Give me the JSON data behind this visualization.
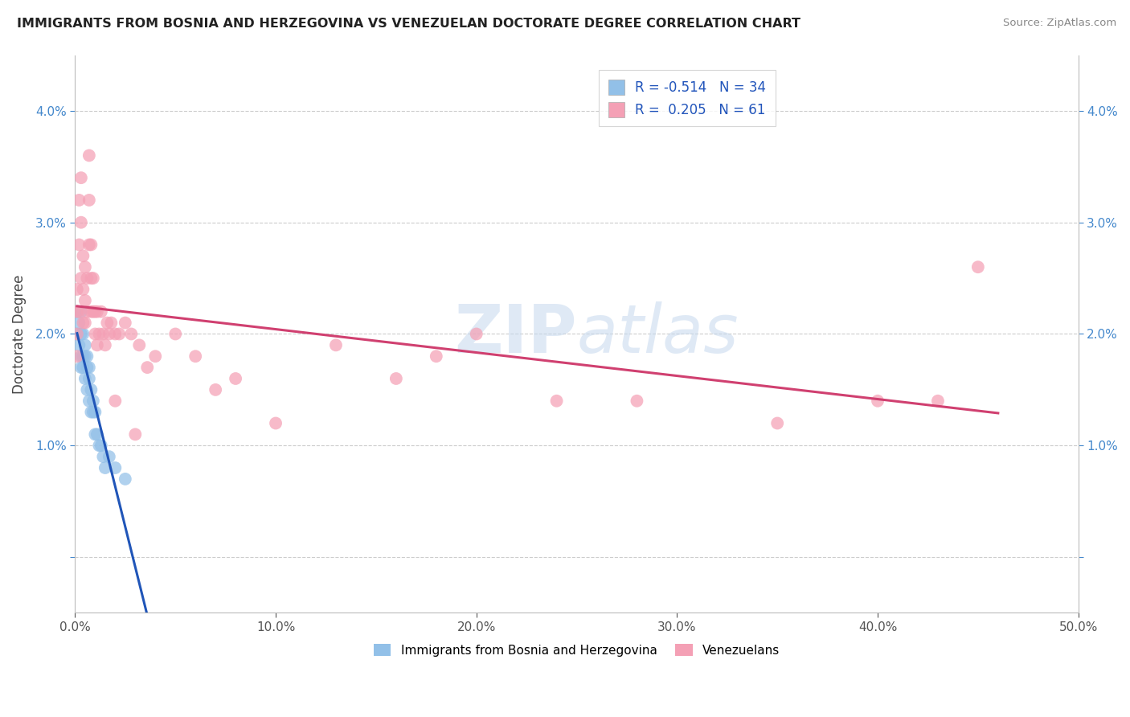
{
  "title": "IMMIGRANTS FROM BOSNIA AND HERZEGOVINA VS VENEZUELAN DOCTORATE DEGREE CORRELATION CHART",
  "source": "Source: ZipAtlas.com",
  "ylabel": "Doctorate Degree",
  "y_ticks": [
    0.0,
    0.01,
    0.02,
    0.03,
    0.04
  ],
  "y_tick_labels": [
    "",
    "1.0%",
    "2.0%",
    "3.0%",
    "4.0%"
  ],
  "x_ticks": [
    0.0,
    0.1,
    0.2,
    0.3,
    0.4,
    0.5
  ],
  "x_tick_labels": [
    "0.0%",
    "10.0%",
    "20.0%",
    "30.0%",
    "40.0%",
    "50.0%"
  ],
  "x_lim": [
    0.0,
    0.5
  ],
  "y_lim": [
    -0.005,
    0.045
  ],
  "legend1_r": "-0.514",
  "legend1_n": "34",
  "legend2_r": "0.205",
  "legend2_n": "61",
  "legend1_label": "Immigrants from Bosnia and Herzegovina",
  "legend2_label": "Venezuelans",
  "color_blue": "#92C0E8",
  "color_pink": "#F4A0B5",
  "line_blue": "#2055B8",
  "line_pink": "#D04070",
  "watermark_color": "#C5D8EE",
  "bosnia_x": [
    0.001,
    0.001,
    0.002,
    0.002,
    0.003,
    0.003,
    0.003,
    0.003,
    0.004,
    0.004,
    0.004,
    0.005,
    0.005,
    0.005,
    0.006,
    0.006,
    0.006,
    0.007,
    0.007,
    0.007,
    0.008,
    0.008,
    0.009,
    0.009,
    0.01,
    0.01,
    0.011,
    0.012,
    0.013,
    0.014,
    0.015,
    0.017,
    0.02,
    0.025
  ],
  "bosnia_y": [
    0.022,
    0.02,
    0.021,
    0.019,
    0.022,
    0.02,
    0.018,
    0.017,
    0.02,
    0.018,
    0.017,
    0.019,
    0.018,
    0.016,
    0.018,
    0.017,
    0.015,
    0.017,
    0.016,
    0.014,
    0.015,
    0.013,
    0.014,
    0.013,
    0.013,
    0.011,
    0.011,
    0.01,
    0.01,
    0.009,
    0.008,
    0.009,
    0.008,
    0.007
  ],
  "venezuela_x": [
    0.001,
    0.001,
    0.001,
    0.001,
    0.002,
    0.002,
    0.002,
    0.003,
    0.003,
    0.003,
    0.004,
    0.004,
    0.004,
    0.005,
    0.005,
    0.005,
    0.006,
    0.006,
    0.007,
    0.007,
    0.007,
    0.008,
    0.008,
    0.008,
    0.009,
    0.009,
    0.01,
    0.01,
    0.011,
    0.011,
    0.012,
    0.013,
    0.014,
    0.015,
    0.016,
    0.017,
    0.018,
    0.02,
    0.022,
    0.025,
    0.028,
    0.032,
    0.036,
    0.04,
    0.05,
    0.06,
    0.08,
    0.1,
    0.13,
    0.16,
    0.18,
    0.2,
    0.24,
    0.28,
    0.35,
    0.4,
    0.43,
    0.45,
    0.02,
    0.03,
    0.07
  ],
  "venezuela_y": [
    0.024,
    0.022,
    0.02,
    0.018,
    0.032,
    0.028,
    0.022,
    0.034,
    0.03,
    0.025,
    0.027,
    0.024,
    0.021,
    0.026,
    0.023,
    0.021,
    0.025,
    0.022,
    0.036,
    0.032,
    0.028,
    0.028,
    0.025,
    0.022,
    0.025,
    0.022,
    0.022,
    0.02,
    0.022,
    0.019,
    0.02,
    0.022,
    0.02,
    0.019,
    0.021,
    0.02,
    0.021,
    0.02,
    0.02,
    0.021,
    0.02,
    0.019,
    0.017,
    0.018,
    0.02,
    0.018,
    0.016,
    0.012,
    0.019,
    0.016,
    0.018,
    0.02,
    0.014,
    0.014,
    0.012,
    0.014,
    0.014,
    0.026,
    0.014,
    0.011,
    0.015
  ]
}
